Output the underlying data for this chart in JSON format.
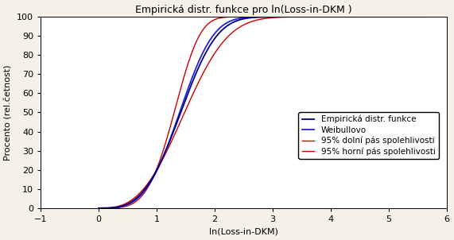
{
  "title": "Empirická distr. funkce pro ln(Loss-in-DKM )",
  "xlabel": "ln(Loss-in-DKM)",
  "ylabel": "Procento (rel.četnost)",
  "xlim": [
    -1,
    6
  ],
  "ylim": [
    0,
    100
  ],
  "xticks": [
    -1,
    0,
    1,
    2,
    3,
    4,
    5,
    6
  ],
  "yticks": [
    0,
    10,
    20,
    30,
    40,
    50,
    60,
    70,
    80,
    90,
    100
  ],
  "background_color": "#f5f0e8",
  "plot_background": "#ffffff",
  "legend_labels": [
    "Empirická distr. funkce",
    "Weibullovo",
    "95% dolní pás spolehlivosti",
    "95% horní pás spolehlivosti"
  ],
  "line_colors": [
    "#000080",
    "#0000ff",
    "#cc0000",
    "#cc0000"
  ],
  "emp_color": "#000080",
  "weibull_color": "#2222dd",
  "ci_color": "#cc0000",
  "title_fontsize": 9,
  "label_fontsize": 8,
  "tick_fontsize": 8,
  "legend_fontsize": 7.5,
  "weibull_shape": 3.5,
  "weibull_scale": 1.55,
  "emp_shape": 3.3,
  "emp_scale": 1.58,
  "lower_shape": 2.9,
  "lower_scale": 1.68,
  "upper_shape": 4.2,
  "upper_scale": 1.42
}
